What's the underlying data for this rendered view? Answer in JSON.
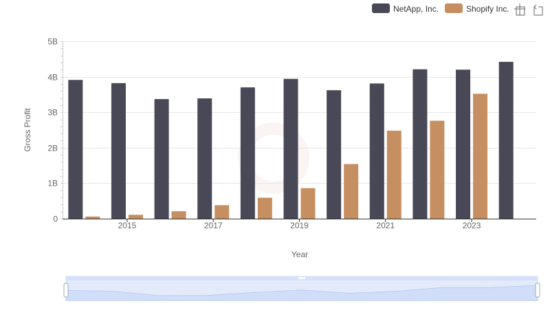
{
  "chart_data": {
    "type": "bar",
    "title": "",
    "xlabel": "Year",
    "ylabel": "Gross Profit",
    "x": [
      2014,
      2015,
      2016,
      2017,
      2018,
      2019,
      2020,
      2021,
      2022,
      2023,
      2024
    ],
    "x_tick_labels": [
      "2015",
      "2017",
      "2019",
      "2021",
      "2023"
    ],
    "x_tick_values": [
      2015,
      2017,
      2019,
      2021,
      2023
    ],
    "y_tick_labels": [
      "0",
      "1B",
      "2B",
      "3B",
      "4B",
      "5B"
    ],
    "y_tick_values": [
      0,
      1000000000,
      2000000000,
      3000000000,
      4000000000,
      5000000000
    ],
    "ylim": [
      0,
      5000000000
    ],
    "grid": true,
    "legend_position": "top-right",
    "series": [
      {
        "name": "NetApp, Inc.",
        "color": "#484856",
        "values": [
          3910000000,
          3820000000,
          3370000000,
          3390000000,
          3700000000,
          3940000000,
          3620000000,
          3810000000,
          4210000000,
          4200000000,
          4420000000
        ]
      },
      {
        "name": "Shopify Inc.",
        "color": "#c68f61",
        "values": [
          60000000,
          110000000,
          210000000,
          380000000,
          590000000,
          860000000,
          1540000000,
          2480000000,
          2760000000,
          3520000000,
          null
        ]
      }
    ]
  },
  "toolbar": {
    "zoom_icon": "crosshair-zoom-icon",
    "reset_icon": "zoom-reset-icon"
  },
  "colors": {
    "grid": "#e6e6e6",
    "axis": "#333333",
    "slider_fill": "#d6e2fb",
    "slider_border": "#a9bde6"
  }
}
